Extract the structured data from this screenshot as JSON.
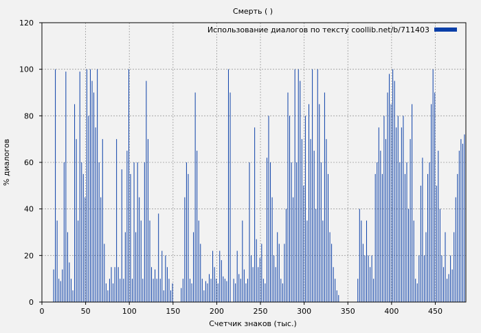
{
  "chart_data": {
    "type": "bar",
    "title": "Смерть ( )",
    "xlabel": "Счетчик знаков (тыс.)",
    "ylabel": "% диалогов",
    "xlim": [
      0,
      485
    ],
    "ylim": [
      0,
      120
    ],
    "xticks": [
      0,
      50,
      100,
      150,
      200,
      250,
      300,
      350,
      400,
      450
    ],
    "yticks": [
      0,
      20,
      40,
      60,
      80,
      100,
      120
    ],
    "grid": true,
    "legend_position": "top-right",
    "series": [
      {
        "name": "Использование диалогов по тексту coollib.net/b/711403",
        "color": "#0a3fa8",
        "bin_width": 0.5,
        "points": [
          [
            13,
            14
          ],
          [
            15,
            100
          ],
          [
            17,
            35
          ],
          [
            19,
            10
          ],
          [
            21,
            9
          ],
          [
            23,
            14
          ],
          [
            25,
            60
          ],
          [
            27,
            99
          ],
          [
            29,
            30
          ],
          [
            31,
            17
          ],
          [
            33,
            10
          ],
          [
            35,
            5
          ],
          [
            37,
            85
          ],
          [
            39,
            70
          ],
          [
            41,
            35
          ],
          [
            43,
            99
          ],
          [
            45,
            60
          ],
          [
            47,
            55
          ],
          [
            49,
            45
          ],
          [
            51,
            100
          ],
          [
            53,
            80
          ],
          [
            55,
            100
          ],
          [
            57,
            95
          ],
          [
            59,
            90
          ],
          [
            61,
            75
          ],
          [
            63,
            100
          ],
          [
            65,
            60
          ],
          [
            67,
            45
          ],
          [
            69,
            70
          ],
          [
            71,
            25
          ],
          [
            73,
            8
          ],
          [
            75,
            5
          ],
          [
            77,
            10
          ],
          [
            79,
            15
          ],
          [
            81,
            8
          ],
          [
            83,
            15
          ],
          [
            85,
            70
          ],
          [
            87,
            15
          ],
          [
            89,
            10
          ],
          [
            91,
            57
          ],
          [
            93,
            10
          ],
          [
            95,
            30
          ],
          [
            97,
            65
          ],
          [
            99,
            100
          ],
          [
            101,
            55
          ],
          [
            103,
            10
          ],
          [
            105,
            60
          ],
          [
            107,
            30
          ],
          [
            109,
            60
          ],
          [
            111,
            45
          ],
          [
            113,
            35
          ],
          [
            115,
            10
          ],
          [
            117,
            60
          ],
          [
            119,
            95
          ],
          [
            121,
            70
          ],
          [
            123,
            35
          ],
          [
            125,
            15
          ],
          [
            127,
            10
          ],
          [
            129,
            14
          ],
          [
            131,
            10
          ],
          [
            133,
            38
          ],
          [
            135,
            10
          ],
          [
            137,
            22
          ],
          [
            139,
            5
          ],
          [
            141,
            20
          ],
          [
            143,
            15
          ],
          [
            145,
            10
          ],
          [
            147,
            5
          ],
          [
            149,
            8
          ],
          [
            159,
            6
          ],
          [
            161,
            10
          ],
          [
            163,
            45
          ],
          [
            165,
            60
          ],
          [
            167,
            55
          ],
          [
            169,
            10
          ],
          [
            171,
            8
          ],
          [
            173,
            30
          ],
          [
            175,
            90
          ],
          [
            177,
            65
          ],
          [
            179,
            35
          ],
          [
            181,
            25
          ],
          [
            183,
            10
          ],
          [
            185,
            5
          ],
          [
            187,
            9
          ],
          [
            189,
            8
          ],
          [
            191,
            12
          ],
          [
            193,
            10
          ],
          [
            195,
            22
          ],
          [
            197,
            15
          ],
          [
            199,
            10
          ],
          [
            201,
            8
          ],
          [
            203,
            22
          ],
          [
            205,
            18
          ],
          [
            207,
            11
          ],
          [
            209,
            10
          ],
          [
            211,
            9
          ],
          [
            213,
            100
          ],
          [
            215,
            90
          ],
          [
            219,
            10
          ],
          [
            221,
            8
          ],
          [
            223,
            22
          ],
          [
            225,
            12
          ],
          [
            227,
            10
          ],
          [
            229,
            35
          ],
          [
            231,
            14
          ],
          [
            233,
            8
          ],
          [
            235,
            10
          ],
          [
            237,
            60
          ],
          [
            239,
            20
          ],
          [
            241,
            15
          ],
          [
            243,
            75
          ],
          [
            245,
            27
          ],
          [
            247,
            15
          ],
          [
            249,
            19
          ],
          [
            251,
            25
          ],
          [
            253,
            10
          ],
          [
            255,
            8
          ],
          [
            257,
            62
          ],
          [
            259,
            80
          ],
          [
            261,
            60
          ],
          [
            263,
            45
          ],
          [
            265,
            20
          ],
          [
            267,
            15
          ],
          [
            269,
            30
          ],
          [
            271,
            25
          ],
          [
            273,
            10
          ],
          [
            275,
            8
          ],
          [
            277,
            25
          ],
          [
            279,
            40
          ],
          [
            281,
            90
          ],
          [
            283,
            80
          ],
          [
            285,
            60
          ],
          [
            287,
            45
          ],
          [
            289,
            100
          ],
          [
            291,
            60
          ],
          [
            293,
            100
          ],
          [
            295,
            95
          ],
          [
            297,
            70
          ],
          [
            299,
            50
          ],
          [
            301,
            80
          ],
          [
            303,
            35
          ],
          [
            305,
            85
          ],
          [
            307,
            70
          ],
          [
            309,
            100
          ],
          [
            311,
            65
          ],
          [
            313,
            40
          ],
          [
            315,
            100
          ],
          [
            317,
            85
          ],
          [
            319,
            60
          ],
          [
            321,
            35
          ],
          [
            323,
            90
          ],
          [
            325,
            70
          ],
          [
            327,
            55
          ],
          [
            329,
            30
          ],
          [
            331,
            25
          ],
          [
            333,
            15
          ],
          [
            335,
            10
          ],
          [
            337,
            5
          ],
          [
            339,
            3
          ],
          [
            361,
            10
          ],
          [
            363,
            40
          ],
          [
            365,
            35
          ],
          [
            367,
            25
          ],
          [
            369,
            20
          ],
          [
            371,
            35
          ],
          [
            373,
            20
          ],
          [
            375,
            15
          ],
          [
            377,
            20
          ],
          [
            379,
            10
          ],
          [
            381,
            55
          ],
          [
            383,
            60
          ],
          [
            385,
            75
          ],
          [
            387,
            65
          ],
          [
            389,
            55
          ],
          [
            391,
            80
          ],
          [
            393,
            70
          ],
          [
            395,
            90
          ],
          [
            397,
            98
          ],
          [
            399,
            85
          ],
          [
            401,
            100
          ],
          [
            403,
            95
          ],
          [
            405,
            75
          ],
          [
            407,
            80
          ],
          [
            409,
            60
          ],
          [
            411,
            75
          ],
          [
            413,
            80
          ],
          [
            415,
            55
          ],
          [
            417,
            60
          ],
          [
            419,
            40
          ],
          [
            421,
            70
          ],
          [
            423,
            85
          ],
          [
            425,
            35
          ],
          [
            427,
            10
          ],
          [
            429,
            8
          ],
          [
            431,
            20
          ],
          [
            433,
            50
          ],
          [
            435,
            62
          ],
          [
            437,
            20
          ],
          [
            439,
            30
          ],
          [
            441,
            55
          ],
          [
            443,
            60
          ],
          [
            445,
            85
          ],
          [
            447,
            100
          ],
          [
            449,
            90
          ],
          [
            451,
            50
          ],
          [
            453,
            65
          ],
          [
            455,
            40
          ],
          [
            457,
            20
          ],
          [
            459,
            15
          ],
          [
            461,
            30
          ],
          [
            463,
            10
          ],
          [
            465,
            12
          ],
          [
            467,
            20
          ],
          [
            469,
            14
          ],
          [
            471,
            30
          ],
          [
            473,
            45
          ],
          [
            475,
            55
          ],
          [
            477,
            65
          ],
          [
            479,
            70
          ],
          [
            481,
            68
          ],
          [
            483,
            72
          ]
        ]
      }
    ]
  }
}
